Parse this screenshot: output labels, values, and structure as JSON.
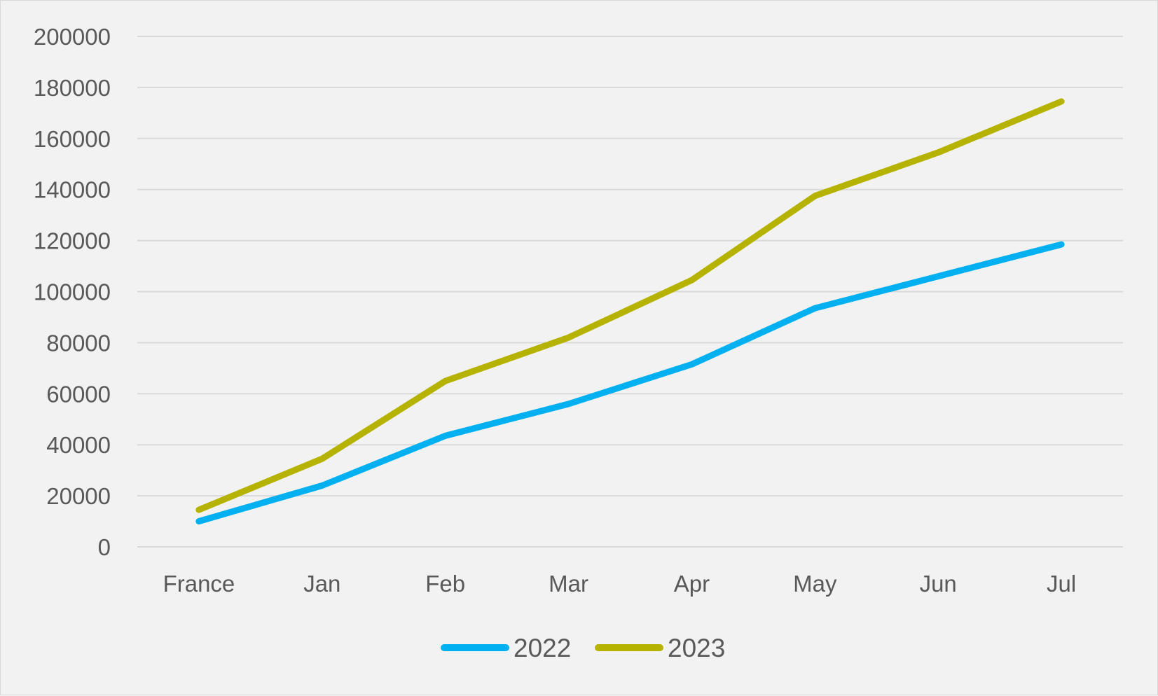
{
  "chart_data": {
    "type": "line",
    "title": "",
    "xlabel": "",
    "ylabel": "",
    "categories": [
      "France",
      "Jan",
      "Feb",
      "Mar",
      "Apr",
      "May",
      "Jun",
      "Jul"
    ],
    "series": [
      {
        "name": "2022",
        "color": "#00b0f0",
        "values": [
          10000,
          24000,
          43500,
          56000,
          71500,
          93500,
          106000,
          118500
        ]
      },
      {
        "name": "2023",
        "color": "#b5b200",
        "values": [
          14500,
          34500,
          65000,
          82000,
          104500,
          137500,
          154500,
          174500
        ]
      }
    ],
    "ylim": [
      0,
      200000
    ],
    "ytick_step": 20000,
    "yticks": [
      "0",
      "20000",
      "40000",
      "60000",
      "80000",
      "100000",
      "120000",
      "140000",
      "160000",
      "180000",
      "200000"
    ],
    "grid": true,
    "legend_position": "bottom"
  }
}
